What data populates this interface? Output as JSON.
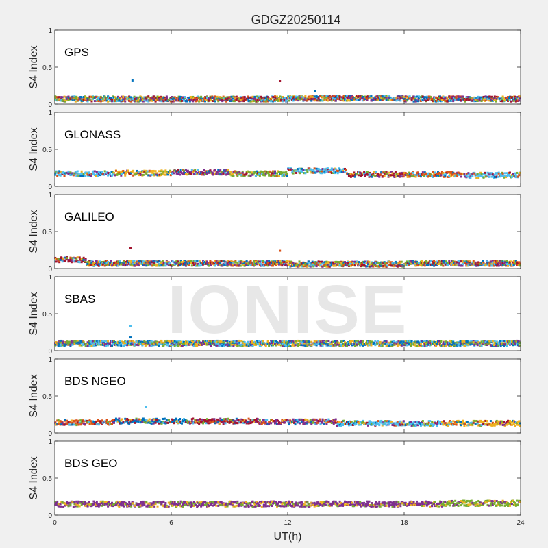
{
  "figure_title": "GDGZ20250114",
  "watermark": "IONISE",
  "colors": {
    "figure_bg": "#f0f0f0",
    "axes_bg": "#ffffff",
    "axes_edge": "#262626",
    "palette": [
      "#0072bd",
      "#d95319",
      "#edb120",
      "#7e2f8e",
      "#77ac30",
      "#4dbeee",
      "#a2142f"
    ]
  },
  "chart_data": [
    {
      "type": "scatter",
      "label": "GPS",
      "ylabel": "S4 Index",
      "xlim": [
        0,
        24
      ],
      "ylim": [
        0,
        1
      ],
      "yticks": [
        "0",
        "0.5",
        "1"
      ],
      "typical_s4": 0.07,
      "colors": [
        "#0072bd",
        "#d95319",
        "#edb120",
        "#7e2f8e",
        "#77ac30",
        "#4dbeee",
        "#a2142f"
      ],
      "segments": [
        {
          "x": [
            0,
            6
          ],
          "s4": 0.07
        },
        {
          "x": [
            6,
            12
          ],
          "s4": 0.07
        },
        {
          "x": [
            12,
            18
          ],
          "s4": 0.08
        },
        {
          "x": [
            18,
            24
          ],
          "s4": 0.07
        }
      ],
      "outliers": [
        {
          "x": 4.0,
          "y": 0.32,
          "color": "#0072bd"
        },
        {
          "x": 11.6,
          "y": 0.31,
          "color": "#a2142f"
        },
        {
          "x": 13.4,
          "y": 0.18,
          "color": "#0072bd"
        }
      ]
    },
    {
      "type": "scatter",
      "label": "GLONASS",
      "ylabel": "S4 Index",
      "xlim": [
        0,
        24
      ],
      "ylim": [
        0,
        1
      ],
      "yticks": [
        "0",
        "0.5",
        "1"
      ],
      "typical_s4": 0.18,
      "colors": [
        "#4dbeee",
        "#77ac30",
        "#edb120",
        "#d95319",
        "#7e2f8e",
        "#a2142f",
        "#0072bd"
      ],
      "segments": [
        {
          "x": [
            0,
            3
          ],
          "s4": 0.17,
          "color": "#4dbeee"
        },
        {
          "x": [
            3,
            6
          ],
          "s4": 0.18,
          "color": "#edb120"
        },
        {
          "x": [
            6,
            9
          ],
          "s4": 0.19,
          "color": "#7e2f8e"
        },
        {
          "x": [
            9,
            12
          ],
          "s4": 0.17,
          "color": "#77ac30"
        },
        {
          "x": [
            12,
            15
          ],
          "s4": 0.21,
          "color": "#4dbeee"
        },
        {
          "x": [
            15,
            18
          ],
          "s4": 0.16,
          "color": "#a2142f"
        },
        {
          "x": [
            18,
            21
          ],
          "s4": 0.16,
          "color": "#d95319"
        },
        {
          "x": [
            21,
            24
          ],
          "s4": 0.15,
          "color": "#4dbeee"
        }
      ],
      "outliers": []
    },
    {
      "type": "scatter",
      "label": "GALILEO",
      "ylabel": "S4 Index",
      "xlim": [
        0,
        24
      ],
      "ylim": [
        0,
        1
      ],
      "yticks": [
        "0",
        "0.5",
        "1"
      ],
      "typical_s4": 0.07,
      "colors": [
        "#0072bd",
        "#d95319",
        "#a2142f",
        "#edb120",
        "#7e2f8e",
        "#4dbeee",
        "#77ac30"
      ],
      "segments": [
        {
          "x": [
            0,
            1.6
          ],
          "s4": 0.12,
          "color": "#a2142f"
        },
        {
          "x": [
            1.6,
            6
          ],
          "s4": 0.07
        },
        {
          "x": [
            6,
            12
          ],
          "s4": 0.07
        },
        {
          "x": [
            12,
            18
          ],
          "s4": 0.06
        },
        {
          "x": [
            18,
            24
          ],
          "s4": 0.07
        }
      ],
      "outliers": [
        {
          "x": 3.9,
          "y": 0.28,
          "color": "#a2142f"
        },
        {
          "x": 11.6,
          "y": 0.24,
          "color": "#d95319"
        }
      ]
    },
    {
      "type": "scatter",
      "label": "SBAS",
      "ylabel": "S4 Index",
      "xlim": [
        0,
        24
      ],
      "ylim": [
        0,
        1
      ],
      "yticks": [
        "0",
        "0.5",
        "1"
      ],
      "typical_s4": 0.1,
      "colors": [
        "#0072bd",
        "#7e2f8e",
        "#4dbeee",
        "#77ac30",
        "#edb120"
      ],
      "segments": [
        {
          "x": [
            0,
            24
          ],
          "s4": 0.1
        }
      ],
      "outliers": [
        {
          "x": 3.9,
          "y": 0.33,
          "color": "#4dbeee"
        },
        {
          "x": 3.9,
          "y": 0.18,
          "color": "#0072bd"
        }
      ]
    },
    {
      "type": "scatter",
      "label": "BDS NGEO",
      "ylabel": "S4 Index",
      "xlim": [
        0,
        24
      ],
      "ylim": [
        0,
        1
      ],
      "yticks": [
        "0",
        "0.5",
        "1"
      ],
      "typical_s4": 0.15,
      "colors": [
        "#d95319",
        "#77ac30",
        "#0072bd",
        "#a2142f",
        "#7e2f8e",
        "#4dbeee",
        "#edb120"
      ],
      "segments": [
        {
          "x": [
            0,
            3
          ],
          "s4": 0.14,
          "color": "#d95319"
        },
        {
          "x": [
            3,
            7
          ],
          "s4": 0.16,
          "color": "#0072bd"
        },
        {
          "x": [
            7,
            10.5
          ],
          "s4": 0.16,
          "color": "#a2142f"
        },
        {
          "x": [
            10.5,
            14.5
          ],
          "s4": 0.15,
          "color": "#7e2f8e"
        },
        {
          "x": [
            14.5,
            20
          ],
          "s4": 0.13,
          "color": "#4dbeee"
        },
        {
          "x": [
            20,
            24
          ],
          "s4": 0.13,
          "color": "#edb120"
        }
      ],
      "outliers": [
        {
          "x": 4.7,
          "y": 0.35,
          "color": "#4dbeee"
        }
      ]
    },
    {
      "type": "scatter",
      "label": "BDS GEO",
      "ylabel": "S4 Index",
      "xlabel": "UT(h)",
      "xticks": [
        "0",
        "6",
        "12",
        "18",
        "24"
      ],
      "xlim": [
        0,
        24
      ],
      "ylim": [
        0,
        1
      ],
      "yticks": [
        "0",
        "0.5",
        "1"
      ],
      "typical_s4": 0.14,
      "colors": [
        "#77ac30",
        "#7e2f8e",
        "#edb120"
      ],
      "segments": [
        {
          "x": [
            0,
            20
          ],
          "s4": 0.15,
          "color": "#7e2f8e"
        },
        {
          "x": [
            20,
            24
          ],
          "s4": 0.16,
          "color": "#77ac30"
        }
      ],
      "outliers": []
    }
  ]
}
